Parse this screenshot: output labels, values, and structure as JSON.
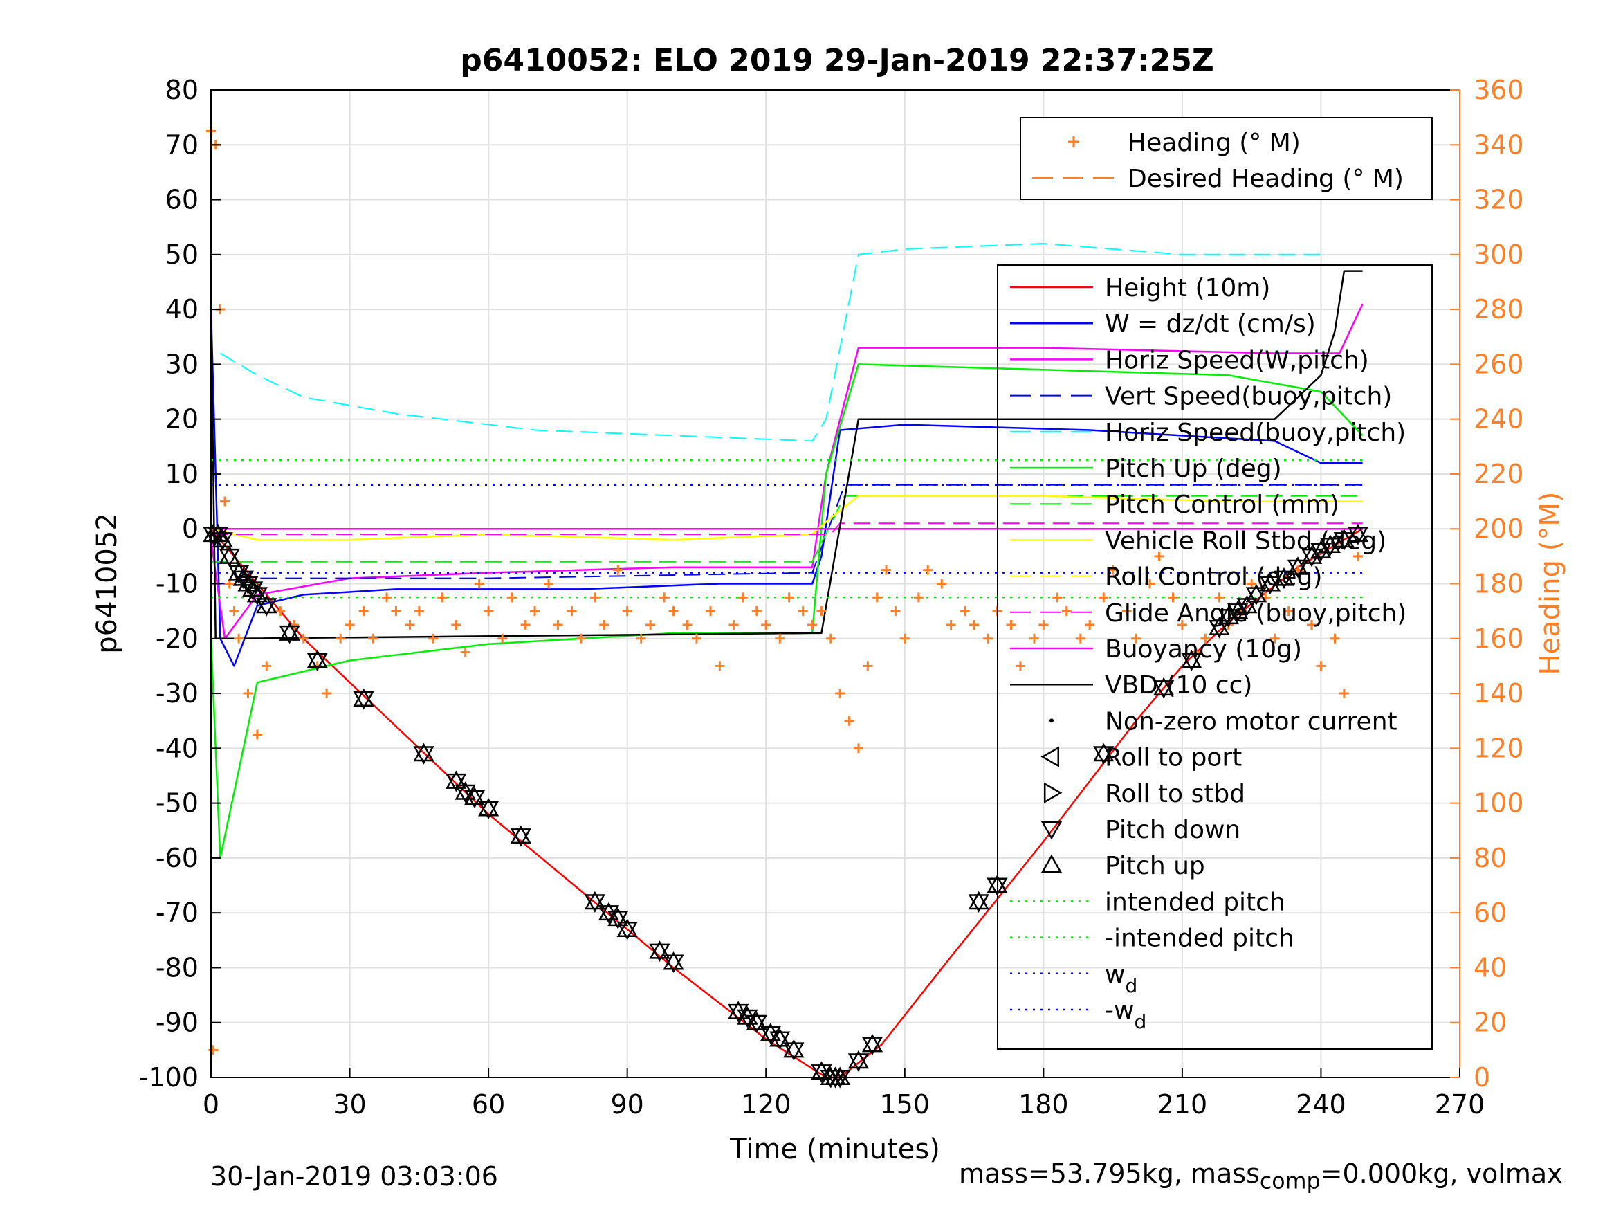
{
  "chart_data": {
    "type": "line",
    "title": "p6410052: ELO 2019 29-Jan-2019 22:37:25Z",
    "xlabel": "Time (minutes)",
    "ylabel": "p6410052",
    "ylabel_right": "Heading (°M)",
    "xlim": [
      0,
      270
    ],
    "ylim": [
      -100,
      80
    ],
    "ylim_right": [
      0,
      360
    ],
    "xticks": [
      0,
      30,
      60,
      90,
      120,
      150,
      180,
      210,
      240,
      270
    ],
    "yticks": [
      -100,
      -90,
      -80,
      -70,
      -60,
      -50,
      -40,
      -30,
      -20,
      -10,
      0,
      10,
      20,
      30,
      40,
      50,
      60,
      70,
      80
    ],
    "yticks_right": [
      0,
      20,
      40,
      60,
      80,
      100,
      120,
      140,
      160,
      180,
      200,
      220,
      240,
      260,
      280,
      300,
      320,
      340,
      360
    ],
    "grid": true,
    "colors": {
      "height": "#ff0000",
      "w": "#0000ff",
      "horiz_speed": "#ff00ff",
      "cyan": "#00ffff",
      "pitch": "#00ee00",
      "yellow": "#ffff00",
      "heading": "#ff7f27",
      "vbd": "#000000",
      "right_axis": "#ff7f27"
    },
    "legend_top": {
      "placement": "top-right",
      "entries": [
        {
          "label": "Heading (° M)",
          "style": "plus",
          "color": "#ff7f27"
        },
        {
          "label": "Desired Heading (° M)",
          "style": "dashed",
          "color": "#ff7f27"
        }
      ]
    },
    "legend_main": {
      "placement": "right",
      "entries": [
        {
          "label": "Height (10m)",
          "style": "line",
          "color": "#ff0000"
        },
        {
          "label": "W = dz/dt (cm/s)",
          "style": "line",
          "color": "#0000ff"
        },
        {
          "label": "Horiz Speed(W,pitch)",
          "style": "line",
          "color": "#ff00ff"
        },
        {
          "label": "Vert Speed(buoy,pitch)",
          "style": "dashed",
          "color": "#0000ff"
        },
        {
          "label": "Horiz Speed(buoy,pitch)",
          "style": "dashed",
          "color": "#00ffff"
        },
        {
          "label": "Pitch Up (deg)",
          "style": "line",
          "color": "#00ee00"
        },
        {
          "label": "Pitch Control (mm)",
          "style": "dashed",
          "color": "#00ee00"
        },
        {
          "label": "Vehicle Roll Stbd (deg)",
          "style": "line",
          "color": "#ffff00"
        },
        {
          "label": "Roll Control (deg)",
          "style": "dashed",
          "color": "#ffff00"
        },
        {
          "label": "Glide Angle (buoy,pitch)",
          "style": "dashed",
          "color": "#ff00ff"
        },
        {
          "label": "Buoyancy (10g)",
          "style": "line",
          "color": "#ff00ff"
        },
        {
          "label": "VBD (10 cc)",
          "style": "line",
          "color": "#000000"
        },
        {
          "label": "Non-zero motor current",
          "style": "dot",
          "color": "#000000"
        },
        {
          "label": "Roll to port",
          "style": "tri-left",
          "color": "#000000"
        },
        {
          "label": "Roll to stbd",
          "style": "tri-right",
          "color": "#000000"
        },
        {
          "label": "Pitch down",
          "style": "tri-down",
          "color": "#000000"
        },
        {
          "label": "Pitch up",
          "style": "tri-up",
          "color": "#000000"
        },
        {
          "label": "intended pitch",
          "style": "dotted",
          "color": "#00ee00"
        },
        {
          "label": "-intended pitch",
          "style": "dotted",
          "color": "#00ee00"
        },
        {
          "label": "w",
          "sub": "d",
          "style": "dotted",
          "color": "#0000ff"
        },
        {
          "label": "-w",
          "sub": "d",
          "style": "dotted",
          "color": "#0000ff"
        }
      ]
    },
    "series": [
      {
        "name": "Height (10m)",
        "x": [
          0,
          2,
          20,
          40,
          60,
          80,
          100,
          120,
          133,
          136,
          145,
          160,
          180,
          200,
          210,
          220,
          235,
          249
        ],
        "y": [
          0,
          -2,
          -20,
          -36,
          -52,
          -66,
          -80,
          -93,
          -100,
          -100,
          -94,
          -78,
          -57,
          -35,
          -25,
          -17,
          -7,
          0
        ]
      },
      {
        "name": "W = dz/dt (cm/s)",
        "x": [
          0,
          2,
          5,
          10,
          20,
          40,
          80,
          110,
          130,
          132,
          136,
          150,
          190,
          230,
          240,
          249
        ],
        "y": [
          40,
          -20,
          -25,
          -14,
          -12,
          -11,
          -11,
          -10,
          -10,
          -5,
          18,
          19,
          18,
          16,
          12,
          12
        ]
      },
      {
        "name": "Horiz Speed(W,pitch)",
        "x": [
          0,
          3,
          10,
          30,
          60,
          100,
          130,
          133,
          140,
          180,
          230,
          244,
          249
        ],
        "y": [
          -2,
          -20,
          -12,
          -9,
          -8,
          -7,
          -7,
          10,
          33,
          33,
          32,
          32,
          41
        ]
      },
      {
        "name": "Vert Speed(buoy,pitch)",
        "x": [
          0,
          3,
          10,
          60,
          130,
          137,
          180,
          249
        ],
        "y": [
          -10,
          -10,
          -9,
          -9,
          -8,
          8,
          8,
          8
        ]
      },
      {
        "name": "Horiz Speed(buoy,pitch)",
        "x": [
          2,
          10,
          20,
          40,
          70,
          100,
          130,
          133,
          140,
          150,
          180,
          210,
          240
        ],
        "y": [
          32,
          28,
          24,
          21,
          18,
          17,
          16,
          20,
          50,
          51,
          52,
          50,
          50
        ]
      },
      {
        "name": "Pitch Up (deg)",
        "x": [
          0,
          2,
          10,
          30,
          60,
          100,
          130,
          133,
          140,
          180,
          220,
          240,
          249
        ],
        "y": [
          -20,
          -60,
          -28,
          -24,
          -21,
          -19,
          -19,
          10,
          30,
          29,
          28,
          25,
          17
        ]
      },
      {
        "name": "Pitch Control (mm)",
        "x": [
          0,
          3,
          10,
          60,
          130,
          137,
          180,
          249
        ],
        "y": [
          -6,
          -6,
          -6,
          -6,
          -6,
          6,
          6,
          6
        ]
      },
      {
        "name": "Vehicle Roll Stbd (deg)",
        "x": [
          0,
          10,
          30,
          60,
          100,
          130,
          134,
          140,
          180,
          220,
          249
        ],
        "y": [
          0,
          -2,
          -2,
          -1,
          -2,
          -1,
          2,
          6,
          6,
          5,
          5
        ]
      },
      {
        "name": "Roll Control (deg)",
        "x": [
          0,
          249
        ],
        "y": [
          0,
          0
        ]
      },
      {
        "name": "Glide Angle (buoy,pitch)",
        "x": [
          0,
          134,
          136,
          249
        ],
        "y": [
          -1,
          -1,
          1,
          1
        ]
      },
      {
        "name": "Buoyancy (10g)",
        "x": [
          0,
          249
        ],
        "y": [
          0,
          0
        ]
      },
      {
        "name": "VBD (10 cc)",
        "x": [
          0,
          1,
          5,
          130,
          132,
          140,
          200,
          210,
          230,
          240,
          243,
          245,
          249
        ],
        "y": [
          40,
          -20,
          -20,
          -19,
          -19,
          20,
          20,
          20,
          20,
          28,
          36,
          47,
          47
        ]
      },
      {
        "name": "intended pitch",
        "x": [
          0,
          249
        ],
        "y": [
          12.5,
          12.5
        ]
      },
      {
        "name": "-intended pitch",
        "x": [
          0,
          249
        ],
        "y": [
          -12.5,
          -12.5
        ]
      },
      {
        "name": "w",
        "x": [
          0,
          249
        ],
        "y": [
          8,
          8
        ]
      },
      {
        "name": "-w",
        "x": [
          0,
          249
        ],
        "y": [
          -8,
          -8
        ]
      }
    ],
    "heading_points": {
      "name": "Heading (° M)",
      "axis": "right",
      "x": [
        0,
        0.5,
        1,
        2,
        3,
        4,
        5,
        6,
        8,
        10,
        12,
        15,
        18,
        20,
        23,
        25,
        28,
        30,
        33,
        35,
        38,
        40,
        43,
        45,
        48,
        50,
        53,
        55,
        58,
        60,
        63,
        65,
        68,
        70,
        73,
        75,
        78,
        80,
        83,
        85,
        88,
        90,
        93,
        95,
        98,
        100,
        103,
        105,
        108,
        110,
        113,
        115,
        118,
        120,
        123,
        125,
        128,
        130,
        132,
        134,
        136,
        138,
        140,
        142,
        144,
        146,
        148,
        150,
        153,
        155,
        158,
        160,
        163,
        165,
        168,
        170,
        173,
        175,
        178,
        180,
        183,
        185,
        188,
        190,
        193,
        195,
        198,
        200,
        203,
        205,
        208,
        210,
        213,
        215,
        218,
        220,
        223,
        225,
        228,
        230,
        233,
        235,
        238,
        240,
        243,
        245,
        248
      ],
      "y": [
        345,
        10,
        340,
        280,
        210,
        180,
        170,
        160,
        140,
        125,
        150,
        170,
        165,
        160,
        150,
        140,
        160,
        165,
        170,
        160,
        175,
        170,
        165,
        170,
        160,
        175,
        165,
        155,
        180,
        170,
        160,
        175,
        165,
        170,
        180,
        165,
        170,
        160,
        175,
        165,
        185,
        170,
        160,
        165,
        175,
        170,
        165,
        160,
        170,
        150,
        165,
        175,
        170,
        165,
        160,
        175,
        170,
        165,
        170,
        160,
        140,
        130,
        120,
        150,
        175,
        185,
        170,
        160,
        175,
        185,
        180,
        165,
        170,
        165,
        160,
        170,
        165,
        150,
        160,
        165,
        175,
        170,
        160,
        165,
        175,
        185,
        170,
        160,
        180,
        190,
        175,
        165,
        155,
        160,
        175,
        165,
        170,
        180,
        175,
        160,
        170,
        185,
        165,
        150,
        160,
        140,
        190
      ]
    },
    "event_markers": {
      "name": "Pitch / roll events",
      "x": [
        0.5,
        1.5,
        2.5,
        4,
        6,
        7,
        8,
        9,
        10,
        12,
        17,
        23,
        33,
        46,
        53,
        55,
        57,
        60,
        67,
        83,
        86,
        88,
        90,
        97,
        100,
        114,
        116,
        118,
        121,
        123,
        126,
        132,
        134,
        135,
        136,
        140,
        143,
        166,
        170,
        193,
        206,
        212,
        218,
        220,
        222,
        224,
        226,
        229,
        232,
        235,
        238,
        240,
        242,
        245,
        248
      ],
      "y": [
        -1,
        -1,
        -2,
        -5,
        -8,
        -9,
        -10,
        -11,
        -12,
        -14,
        -19,
        -24,
        -31,
        -41,
        -46,
        -48,
        -49,
        -51,
        -56,
        -68,
        -70,
        -71,
        -73,
        -77,
        -79,
        -88,
        -89,
        -90,
        -92,
        -93,
        -95,
        -99,
        -100,
        -100,
        -100,
        -97,
        -94,
        -68,
        -65,
        -41,
        -29,
        -24,
        -18,
        -16,
        -15,
        -14,
        -12,
        -10,
        -9,
        -7,
        -5,
        -4,
        -3,
        -2,
        -1
      ]
    }
  },
  "footer": {
    "timestamp": "30-Jan-2019 03:03:06",
    "mass_prefix": "mass=53.795kg, mass",
    "mass_sub": "comp",
    "mass_suffix": "=0.000kg, volmax"
  }
}
